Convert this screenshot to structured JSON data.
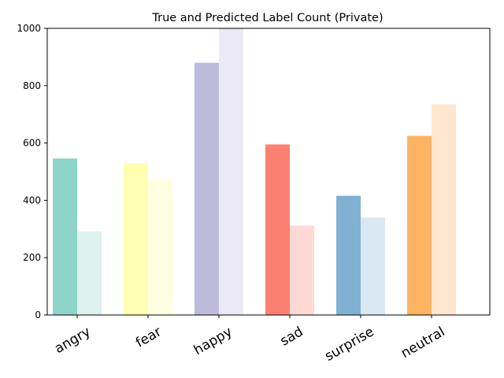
{
  "chart_data": {
    "type": "bar",
    "title": "True and Predicted Label Count (Private)",
    "xlabel": "",
    "ylabel": "",
    "ylim": [
      0,
      1000
    ],
    "yticks": [
      0,
      200,
      400,
      600,
      800,
      1000
    ],
    "grid": false,
    "categories": [
      "angry",
      "fear",
      "happy",
      "sad",
      "surprise",
      "neutral"
    ],
    "series": [
      {
        "values": [
          546,
          530,
          880,
          595,
          416,
          625
        ]
      },
      {
        "values": [
          292,
          475,
          1000,
          312,
          340,
          735
        ]
      }
    ],
    "colors": {
      "true": [
        "#8dd3c7",
        "#ffffb3",
        "#bebada",
        "#fb8072",
        "#80b1d3",
        "#fdb462"
      ],
      "predicted": [
        "#ddf2ee",
        "#ffffe1",
        "#ebe9f4",
        "#fed9d5",
        "#d9e8f2",
        "#fee7ce"
      ]
    }
  }
}
